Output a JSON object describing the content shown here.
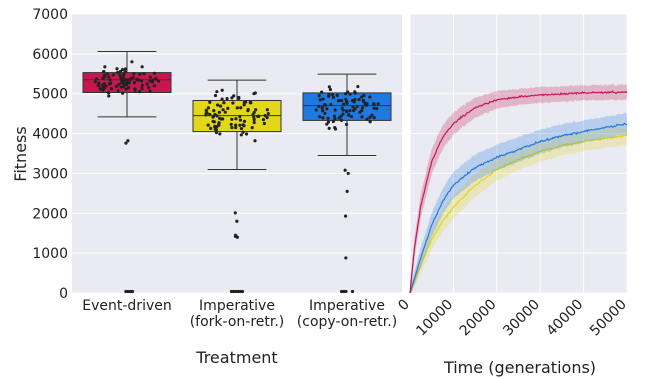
{
  "chart_data": [
    {
      "type": "box",
      "xlabel": "Treatment",
      "ylabel": "Fitness",
      "ylim": [
        0,
        7000
      ],
      "yticks": [
        0,
        1000,
        2000,
        3000,
        4000,
        5000,
        6000,
        7000
      ],
      "grid": true,
      "categories": [
        {
          "label": [
            "Event-driven"
          ],
          "color": "#c8174f",
          "q1": 5030,
          "median": 5350,
          "q3": 5530,
          "whisker_low": 4420,
          "whisker_high": 6060,
          "outliers": [
            3760,
            3820,
            0,
            0,
            0,
            0
          ]
        },
        {
          "label": [
            "Imperative",
            "(fork-on-retr.)"
          ],
          "color": "#e2d719",
          "q1": 4050,
          "median": 4450,
          "q3": 4830,
          "whisker_low": 3100,
          "whisker_high": 5340,
          "outliers": [
            2010,
            1800,
            1450,
            1400,
            1420,
            0,
            0,
            0,
            0,
            0,
            0
          ]
        },
        {
          "label": [
            "Imperative",
            "(copy-on-retr.)"
          ],
          "color": "#2079e0",
          "q1": 4330,
          "median": 4700,
          "q3": 5020,
          "whisker_low": 3450,
          "whisker_high": 5490,
          "outliers": [
            3080,
            3000,
            2550,
            1930,
            880,
            0,
            0,
            0,
            0
          ]
        }
      ]
    },
    {
      "type": "line",
      "xlabel": "Time (generations)",
      "xlim": [
        0,
        50000
      ],
      "xticks": [
        0,
        10000,
        20000,
        30000,
        40000,
        50000
      ],
      "ylim": [
        0,
        7000
      ],
      "grid": true,
      "x": [
        0,
        1000,
        2500,
        5000,
        7500,
        10000,
        15000,
        20000,
        25000,
        30000,
        35000,
        40000,
        45000,
        50000
      ],
      "series": [
        {
          "color": "#c8174f",
          "values": [
            0,
            1100,
            2200,
            3300,
            3900,
            4250,
            4650,
            4850,
            4920,
            4970,
            5000,
            5020,
            5030,
            5040
          ],
          "ci": [
            250,
            250,
            300,
            320,
            300,
            280,
            250,
            220,
            200,
            200,
            190,
            190,
            190,
            190
          ]
        },
        {
          "color": "#2079e0",
          "values": [
            0,
            350,
            900,
            1700,
            2300,
            2700,
            3150,
            3400,
            3600,
            3800,
            3950,
            4050,
            4150,
            4250
          ],
          "ci": [
            120,
            180,
            250,
            300,
            320,
            330,
            330,
            320,
            310,
            300,
            290,
            280,
            270,
            270
          ]
        },
        {
          "color": "#e2d719",
          "values": [
            0,
            300,
            700,
            1350,
            1800,
            2150,
            2700,
            3100,
            3350,
            3550,
            3700,
            3800,
            3880,
            3950
          ],
          "ci": [
            100,
            150,
            220,
            260,
            280,
            290,
            290,
            280,
            270,
            260,
            250,
            240,
            240,
            240
          ]
        }
      ]
    }
  ]
}
